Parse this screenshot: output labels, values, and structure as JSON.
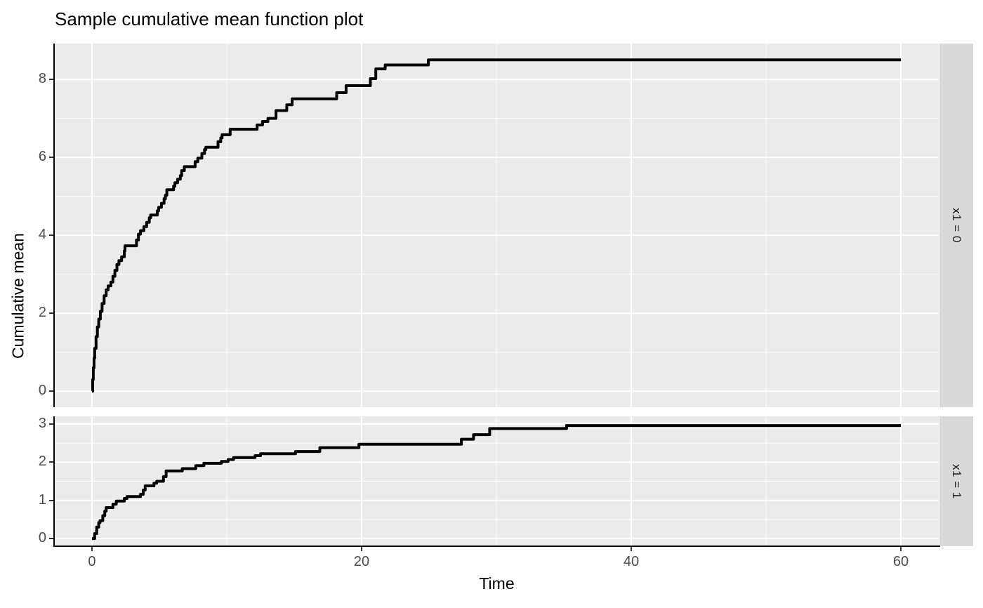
{
  "title": "Sample cumulative mean function plot",
  "chart_data": {
    "type": "line",
    "style": "step",
    "title": "Sample cumulative mean function plot",
    "xlabel": "Time",
    "ylabel": "Cumulative mean",
    "legend": "none",
    "grid": "white major and minor gridlines on gray panel",
    "faceting": "rows by x1, strips on right",
    "colors": {
      "line": "#000000",
      "panel_bg": "#ebebeb",
      "strip_bg": "#d9d9d9",
      "grid": "#ffffff",
      "axis_text": "#4d4d4d",
      "tick_mark": "#333333",
      "text": "#000000"
    },
    "xlim": [
      -2.76,
      62.81
    ],
    "x_ticks": [
      0,
      20,
      40,
      60
    ],
    "x_tick_labels": [
      "0",
      "20",
      "40",
      "60"
    ],
    "x_minor": [
      10,
      30,
      50
    ],
    "facets": [
      {
        "label": "x1 = 0",
        "ylim": [
          -0.41,
          8.92
        ],
        "y_ticks": [
          0,
          2,
          4,
          6,
          8
        ],
        "y_tick_labels": [
          "0",
          "2",
          "4",
          "6",
          "8"
        ],
        "y_minor": [
          1,
          3,
          5,
          7
        ],
        "series_name": "sample cumulative mean",
        "points": [
          [
            0,
            0
          ],
          [
            0.05,
            0.3
          ],
          [
            0.1,
            0.6
          ],
          [
            0.15,
            0.85
          ],
          [
            0.2,
            1.1
          ],
          [
            0.3,
            1.4
          ],
          [
            0.4,
            1.65
          ],
          [
            0.5,
            1.85
          ],
          [
            0.62,
            2.05
          ],
          [
            0.75,
            2.25
          ],
          [
            0.9,
            2.45
          ],
          [
            1.05,
            2.6
          ],
          [
            1.2,
            2.7
          ],
          [
            1.4,
            2.8
          ],
          [
            1.55,
            2.95
          ],
          [
            1.7,
            3.1
          ],
          [
            1.85,
            3.25
          ],
          [
            2.0,
            3.35
          ],
          [
            2.2,
            3.45
          ],
          [
            2.4,
            3.6
          ],
          [
            2.45,
            3.73
          ],
          [
            3.3,
            3.88
          ],
          [
            3.45,
            4.03
          ],
          [
            3.6,
            4.12
          ],
          [
            3.85,
            4.22
          ],
          [
            4.05,
            4.33
          ],
          [
            4.25,
            4.45
          ],
          [
            4.35,
            4.52
          ],
          [
            4.85,
            4.63
          ],
          [
            4.95,
            4.72
          ],
          [
            5.15,
            4.82
          ],
          [
            5.35,
            4.94
          ],
          [
            5.45,
            5.03
          ],
          [
            5.55,
            5.17
          ],
          [
            6.05,
            5.26
          ],
          [
            6.15,
            5.35
          ],
          [
            6.35,
            5.44
          ],
          [
            6.55,
            5.53
          ],
          [
            6.65,
            5.66
          ],
          [
            6.85,
            5.76
          ],
          [
            7.65,
            5.89
          ],
          [
            7.85,
            5.98
          ],
          [
            8.15,
            6.1
          ],
          [
            8.35,
            6.2
          ],
          [
            8.45,
            6.26
          ],
          [
            9.35,
            6.4
          ],
          [
            9.55,
            6.5
          ],
          [
            9.65,
            6.58
          ],
          [
            10.25,
            6.72
          ],
          [
            12.25,
            6.83
          ],
          [
            12.65,
            6.92
          ],
          [
            13.05,
            7.0
          ],
          [
            13.65,
            7.2
          ],
          [
            14.45,
            7.35
          ],
          [
            14.85,
            7.5
          ],
          [
            18.15,
            7.66
          ],
          [
            18.85,
            7.84
          ],
          [
            20.65,
            8.02
          ],
          [
            21.05,
            8.27
          ],
          [
            21.75,
            8.37
          ],
          [
            24.95,
            8.5
          ],
          [
            60,
            8.5
          ]
        ]
      },
      {
        "label": "x1 = 1",
        "ylim": [
          -0.2,
          3.2
        ],
        "y_ticks": [
          0,
          1,
          2,
          3
        ],
        "y_tick_labels": [
          "0",
          "1",
          "2",
          "3"
        ],
        "y_minor": [
          0.5,
          1.5,
          2.5
        ],
        "series_name": "sample cumulative mean",
        "points": [
          [
            0,
            0
          ],
          [
            0.2,
            0.13
          ],
          [
            0.35,
            0.3
          ],
          [
            0.5,
            0.42
          ],
          [
            0.6,
            0.47
          ],
          [
            0.8,
            0.6
          ],
          [
            0.95,
            0.72
          ],
          [
            1.05,
            0.81
          ],
          [
            1.55,
            0.9
          ],
          [
            1.8,
            0.98
          ],
          [
            2.4,
            1.05
          ],
          [
            2.6,
            1.1
          ],
          [
            3.6,
            1.16
          ],
          [
            3.8,
            1.27
          ],
          [
            3.95,
            1.38
          ],
          [
            4.6,
            1.45
          ],
          [
            4.8,
            1.5
          ],
          [
            5.3,
            1.62
          ],
          [
            5.5,
            1.77
          ],
          [
            6.7,
            1.83
          ],
          [
            7.7,
            1.91
          ],
          [
            8.3,
            1.97
          ],
          [
            9.6,
            2.02
          ],
          [
            10.1,
            2.07
          ],
          [
            10.5,
            2.12
          ],
          [
            12.1,
            2.17
          ],
          [
            12.5,
            2.22
          ],
          [
            15.1,
            2.28
          ],
          [
            16.9,
            2.38
          ],
          [
            19.8,
            2.47
          ],
          [
            27.4,
            2.6
          ],
          [
            28.3,
            2.72
          ],
          [
            29.5,
            2.88
          ],
          [
            35.2,
            2.96
          ],
          [
            60,
            2.96
          ]
        ]
      }
    ]
  }
}
